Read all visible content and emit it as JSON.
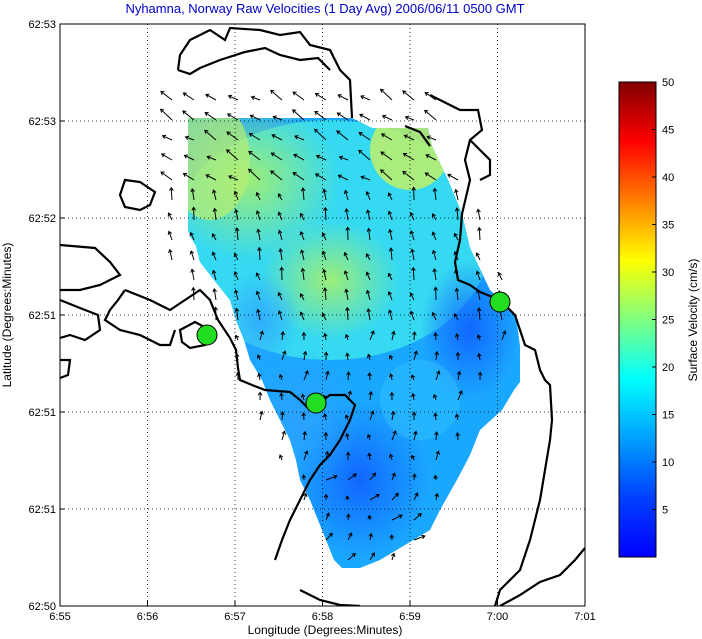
{
  "chart_data": {
    "type": "heatmap",
    "title": "Nyhamna, Norway Raw Velocities (1 Day Avg) 2006/06/11 0500 GMT",
    "xlabel": "Longitude (Degrees:Minutes)",
    "ylabel": "Latitude (Degrees:Minutes)",
    "x_ticks": [
      "6:55",
      "6:56",
      "6:57",
      "6:58",
      "6:59",
      "7:00",
      "7:01"
    ],
    "y_ticks": [
      "62:53",
      "62:53",
      "62:52",
      "62:51",
      "62:51",
      "62:51",
      "62:50"
    ],
    "grid": true,
    "colorbar": {
      "label": "Surface Velocity (cm/s)",
      "min": 0,
      "max": 50,
      "ticks": [
        "5",
        "10",
        "15",
        "20",
        "25",
        "30",
        "35",
        "40",
        "45",
        "50"
      ],
      "colormap": "jet"
    },
    "sites": [
      {
        "lon_min": 56.7,
        "lat_rel": 0.52
      },
      {
        "lon_min": 57.9,
        "lat_rel": 0.42
      },
      {
        "lon_min": 60.0,
        "lat_rel": 0.6
      }
    ],
    "vector_field": "surface velocity arrows, mostly northwestward / northward flow",
    "speed_range_cm_s": [
      3,
      20
    ]
  }
}
